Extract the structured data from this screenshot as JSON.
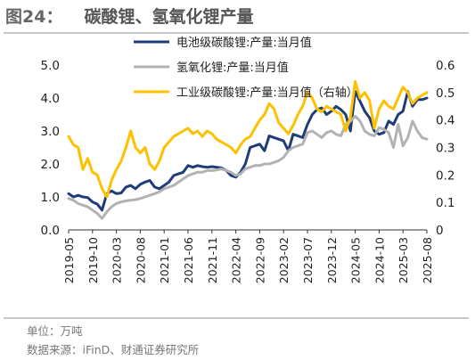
{
  "figure": {
    "number": "图24：",
    "title": "碳酸锂、氢氧化锂产量",
    "unit_note": "单位：万吨",
    "source_note": "数据来源：iFinD、财通证券研究所"
  },
  "chart_data": {
    "type": "line",
    "title": "碳酸锂、氢氧化锂产量",
    "xlabel": "",
    "ylabel": "",
    "x_tick_labels": [
      "2019-05",
      "2019-10",
      "2020-03",
      "2020-08",
      "2021-01",
      "2021-06",
      "2021-11",
      "2022-04",
      "2022-09",
      "2023-02",
      "2023-07",
      "2023-12",
      "2024-05",
      "2024-10",
      "2025-03",
      "2025-08"
    ],
    "x_start": "2019-05",
    "y_left": {
      "min": 0,
      "max": 5,
      "ticks": [
        "0.0",
        "1.0",
        "2.0",
        "3.0",
        "4.0",
        "5.0"
      ]
    },
    "y_right": {
      "min": 0,
      "max": 0.6,
      "ticks": [
        "0",
        "0.1",
        "0.2",
        "0.3",
        "0.4",
        "0.5",
        "0.6"
      ]
    },
    "legend_position": "top-center",
    "grid": false,
    "series": [
      {
        "name": "电池级碳酸锂:产量:当月值",
        "axis": "left",
        "color": "#1f3c7a",
        "values": [
          1.1,
          1.0,
          1.05,
          1.0,
          0.98,
          0.85,
          0.78,
          0.6,
          1.1,
          1.18,
          1.1,
          1.12,
          1.3,
          1.35,
          1.25,
          1.38,
          1.45,
          1.5,
          1.3,
          1.25,
          1.35,
          1.45,
          1.65,
          1.7,
          1.75,
          1.95,
          1.9,
          1.95,
          1.92,
          1.9,
          1.92,
          1.9,
          1.88,
          1.8,
          1.65,
          1.6,
          1.75,
          2.0,
          2.5,
          2.55,
          2.6,
          2.4,
          2.85,
          2.8,
          2.75,
          2.7,
          2.4,
          2.9,
          2.85,
          2.8,
          3.2,
          3.5,
          3.65,
          3.7,
          3.5,
          3.6,
          3.75,
          3.65,
          3.5,
          3.0,
          4.2,
          3.9,
          3.6,
          3.4,
          3.0,
          2.9,
          2.95,
          3.3,
          3.2,
          3.5,
          3.6,
          4.2,
          3.75,
          3.95,
          3.95,
          4.0
        ]
      },
      {
        "name": "氢氧化锂:产量:当月值",
        "axis": "left",
        "color": "#b2b2b2",
        "values": [
          0.95,
          0.9,
          0.8,
          0.75,
          0.7,
          0.6,
          0.5,
          0.35,
          0.55,
          0.7,
          0.8,
          0.85,
          0.88,
          0.9,
          0.92,
          0.95,
          1.0,
          1.05,
          1.1,
          1.15,
          1.25,
          1.3,
          1.35,
          1.45,
          1.55,
          1.65,
          1.7,
          1.75,
          1.75,
          1.8,
          1.8,
          1.82,
          1.85,
          1.8,
          1.75,
          1.65,
          1.7,
          1.85,
          1.9,
          1.95,
          1.95,
          2.0,
          2.0,
          2.05,
          2.1,
          2.2,
          2.4,
          2.5,
          2.55,
          2.6,
          2.95,
          3.0,
          2.9,
          2.8,
          2.95,
          3.0,
          2.9,
          2.85,
          3.2,
          3.3,
          3.45,
          3.3,
          3.0,
          2.9,
          2.85,
          3.1,
          3.05,
          2.95,
          2.5,
          3.2,
          2.55,
          2.8,
          3.3,
          3.0,
          2.8,
          2.75
        ]
      },
      {
        "name": "工业级碳酸锂:产量:当月值（右轴）",
        "axis": "right",
        "color": "#ffc000",
        "values": [
          0.34,
          0.31,
          0.3,
          0.22,
          0.26,
          0.21,
          0.2,
          0.15,
          0.12,
          0.18,
          0.22,
          0.25,
          0.3,
          0.36,
          0.3,
          0.28,
          0.3,
          0.24,
          0.22,
          0.25,
          0.3,
          0.32,
          0.34,
          0.35,
          0.36,
          0.37,
          0.35,
          0.36,
          0.34,
          0.36,
          0.35,
          0.33,
          0.32,
          0.31,
          0.3,
          0.28,
          0.31,
          0.33,
          0.34,
          0.37,
          0.4,
          0.42,
          0.46,
          0.44,
          0.39,
          0.37,
          0.35,
          0.38,
          0.42,
          0.45,
          0.5,
          0.48,
          0.44,
          0.43,
          0.45,
          0.44,
          0.43,
          0.42,
          0.36,
          0.41,
          0.54,
          0.48,
          0.5,
          0.47,
          0.37,
          0.44,
          0.47,
          0.45,
          0.44,
          0.48,
          0.52,
          0.5,
          0.46,
          0.48,
          0.49,
          0.5
        ]
      }
    ]
  }
}
